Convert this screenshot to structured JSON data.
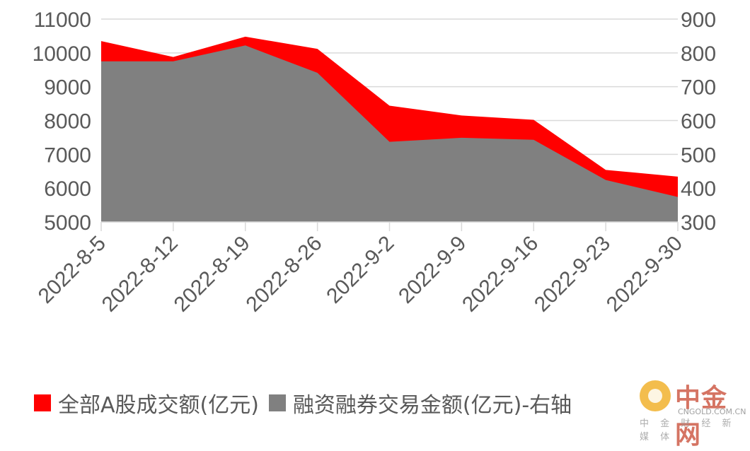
{
  "chart_data": {
    "type": "area",
    "categories": [
      "2022-8-5",
      "2022-8-12",
      "2022-8-19",
      "2022-8-26",
      "2022-9-2",
      "2022-9-9",
      "2022-9-16",
      "2022-9-23",
      "2022-9-30"
    ],
    "series": [
      {
        "name": "全部A股成交额(亿元)",
        "axis": "left",
        "color": "#ff0000",
        "values": [
          10350,
          9880,
          10480,
          10120,
          8440,
          8150,
          8020,
          6540,
          6340
        ]
      },
      {
        "name": "融资融券交易金额(亿元)-右轴",
        "axis": "right",
        "color": "#808080",
        "values": [
          775,
          775,
          822,
          741,
          537,
          549,
          543,
          424,
          374
        ]
      }
    ],
    "left_axis": {
      "ylim": [
        5000,
        11000
      ],
      "ticks": [
        "5000",
        "6000",
        "7000",
        "8000",
        "9000",
        "10000",
        "11000"
      ]
    },
    "right_axis": {
      "ylim": [
        300,
        900
      ],
      "ticks": [
        "300",
        "400",
        "500",
        "600",
        "700",
        "800",
        "900"
      ]
    },
    "grid": true,
    "legend_position": "bottom"
  },
  "watermark": {
    "name": "中金网",
    "url": "CNGOLD.COM.CN",
    "sub": "中 金 财 经 新 媒 体"
  }
}
